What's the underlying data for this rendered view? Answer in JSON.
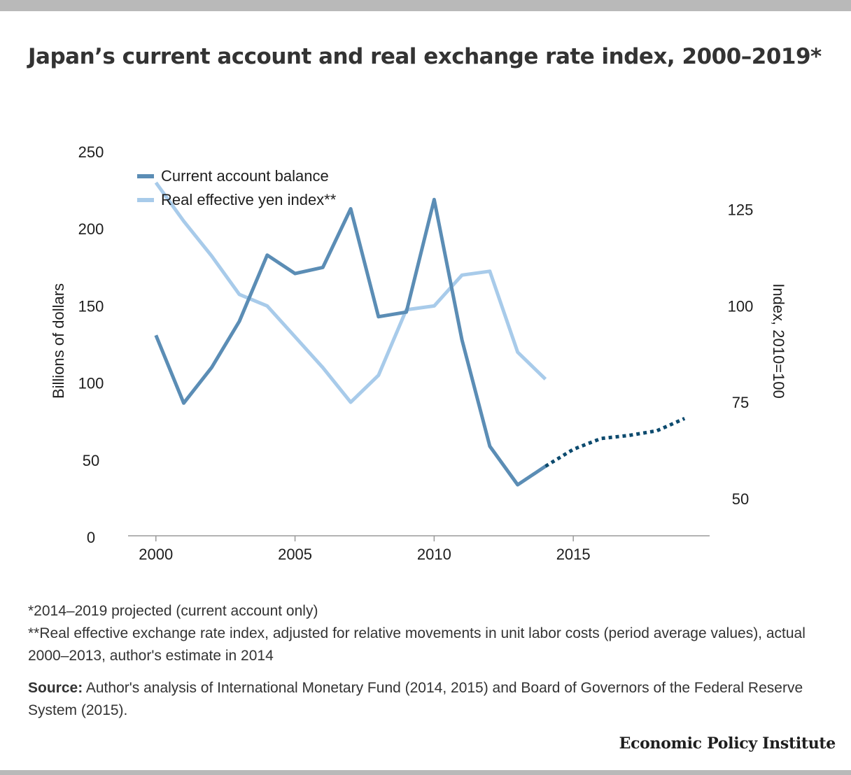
{
  "title": "Japan’s current account and real exchange rate index, 2000–2019*",
  "notes": [
    "*2014–2019 projected (current account only)",
    "**Real effective exchange rate index, adjusted for relative movements in unit labor costs (period average values), actual 2000–2013, author's estimate in 2014"
  ],
  "source": {
    "label": "Source:",
    "text": "Author's analysis of International Monetary Fund (2014, 2015) and Board of Governors of the Federal Reserve System (2015)."
  },
  "brand": "Economic Policy Institute",
  "colors": {
    "current_account": "#5b8db5",
    "projection": "#0c4a6e",
    "yen_index": "#a8cbea"
  },
  "chart_data": {
    "type": "line",
    "x": [
      2000,
      2001,
      2002,
      2003,
      2004,
      2005,
      2006,
      2007,
      2008,
      2009,
      2010,
      2011,
      2012,
      2013,
      2014,
      2015,
      2016,
      2017,
      2018,
      2019
    ],
    "xticks": [
      2000,
      2005,
      2010,
      2015
    ],
    "xlim": [
      1999,
      2019.9
    ],
    "ylabel": "Billions of dollars",
    "ylim": [
      0,
      250
    ],
    "yticks": [
      0,
      50,
      100,
      150,
      200,
      250
    ],
    "y2label": "Index, 2010=100",
    "y2lim": [
      40,
      140
    ],
    "y2ticks": [
      50,
      75,
      100,
      125
    ],
    "legend_placement": "top-left",
    "series": [
      {
        "name": "Current account balance",
        "axis": "left",
        "x": [
          2000,
          2001,
          2002,
          2003,
          2004,
          2005,
          2006,
          2007,
          2008,
          2009,
          2010,
          2011,
          2012,
          2013,
          2014
        ],
        "values": [
          131,
          87,
          110,
          140,
          183,
          171,
          175,
          213,
          143,
          146,
          219,
          128,
          59,
          34,
          46
        ]
      },
      {
        "name": "",
        "axis": "left",
        "style": "dotted",
        "legend": false,
        "x": [
          2014,
          2015,
          2016,
          2017,
          2018,
          2019
        ],
        "values": [
          46,
          57,
          64,
          66,
          69,
          77
        ]
      },
      {
        "name": "Real effective yen index**",
        "axis": "right",
        "x": [
          2000,
          2001,
          2002,
          2003,
          2004,
          2005,
          2006,
          2007,
          2008,
          2009,
          2010,
          2011,
          2012,
          2013,
          2014
        ],
        "values": [
          132,
          122,
          113,
          103,
          100,
          92,
          84,
          75,
          82,
          99,
          100,
          108,
          109,
          88,
          81
        ]
      }
    ]
  }
}
